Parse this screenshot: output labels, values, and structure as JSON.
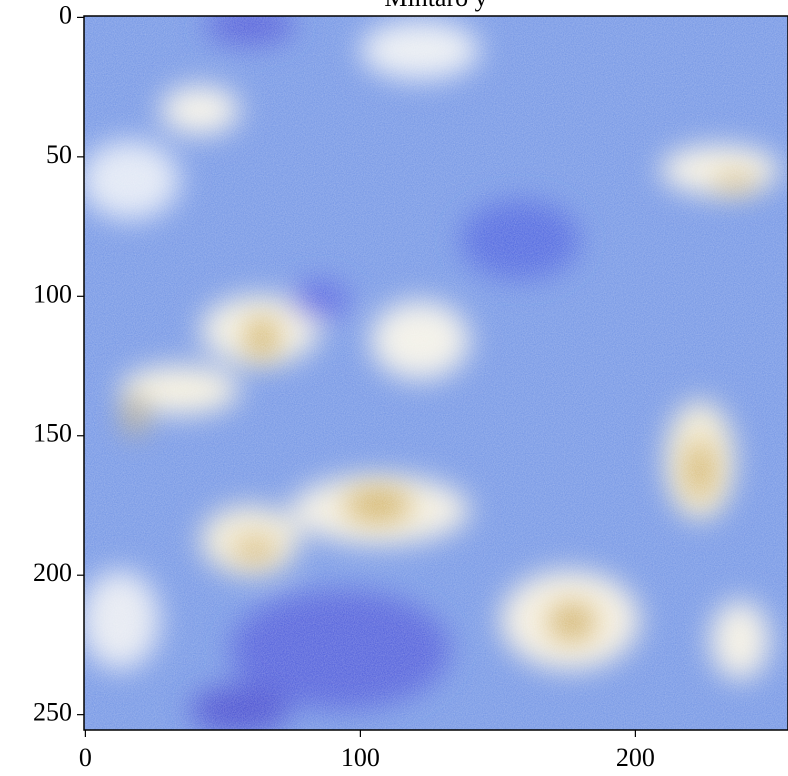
{
  "chart_data": {
    "type": "image",
    "title": "Mintaro y",
    "xlim": [
      -0.5,
      255.5
    ],
    "ylim": [
      255.5,
      -0.5
    ],
    "xticks": [
      0,
      100,
      200
    ],
    "yticks": [
      0,
      50,
      100,
      150,
      200,
      250
    ]
  }
}
